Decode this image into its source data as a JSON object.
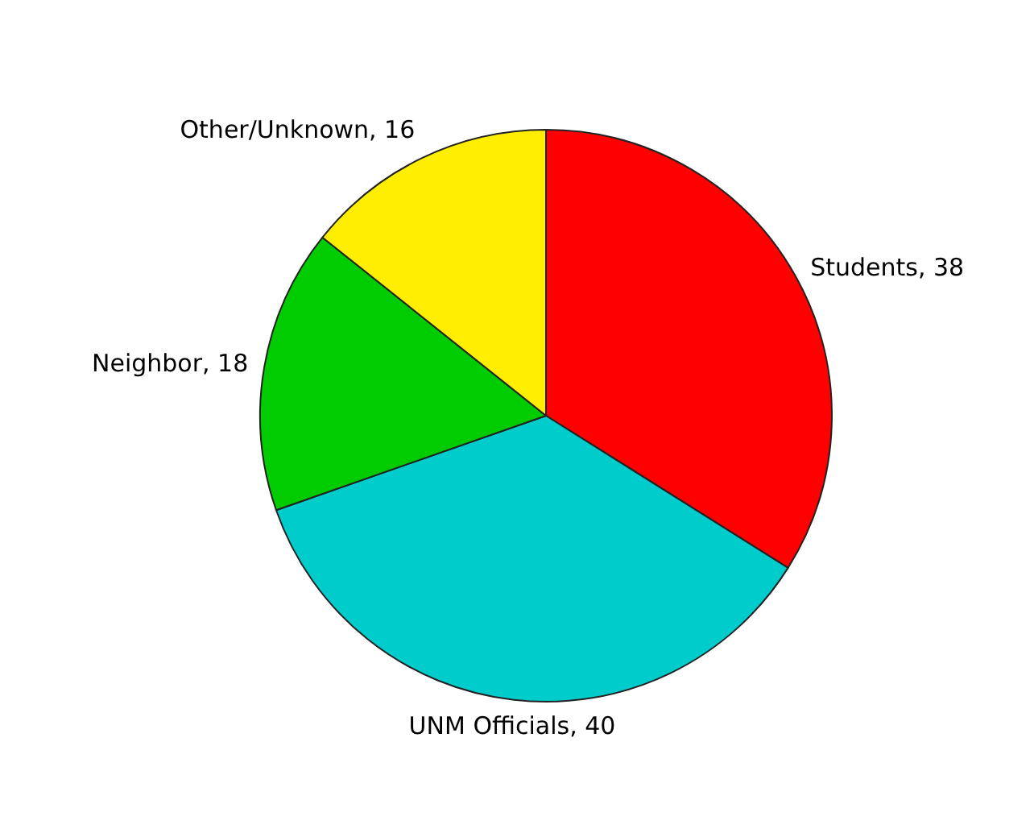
{
  "chart_data": {
    "type": "pie",
    "categories": [
      "Students",
      "UNM Officials",
      "Neighbor",
      "Other/Unknown"
    ],
    "values": [
      38,
      40,
      18,
      16
    ],
    "value_labels": [
      ", 38",
      ", 40",
      ", 18",
      ", 16"
    ],
    "colors": [
      "#ff0000",
      "#00cccc",
      "#00cc00",
      "#ffee00"
    ],
    "legend": false
  }
}
